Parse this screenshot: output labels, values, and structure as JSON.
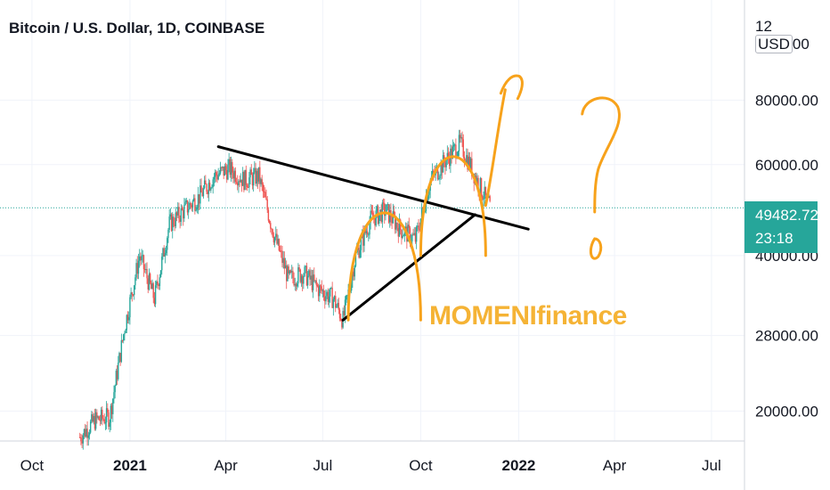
{
  "header": {
    "title": "Bitcoin / U.S. Dollar, 1D, COINBASE",
    "currency_prefix": "12",
    "currency": "USD",
    "currency_suffix": "00"
  },
  "watermark": "MOMENIfinance",
  "last_price": {
    "value": "49482.72",
    "countdown": "23:18"
  },
  "colors": {
    "up": "#26a69a",
    "down": "#ef5350",
    "drawing_orange": "#f7a21b",
    "trendline": "#000000",
    "grid": "#f0f3fa",
    "price_line": "#26a69a"
  },
  "chart_data": {
    "type": "candlestick",
    "title": "Bitcoin / U.S. Dollar, 1D, COINBASE",
    "scale": "log",
    "ylim": [
      17500,
      125000
    ],
    "xlim": [
      "2020-09-01",
      "2022-08-01"
    ],
    "y_ticks": [
      "20000.00",
      "28000.00",
      "40000.00",
      "60000.00",
      "80000.00"
    ],
    "x_ticks": [
      "Oct",
      "2021",
      "Apr",
      "Jul",
      "Oct",
      "2022",
      "Apr",
      "Jul"
    ],
    "x_tick_dates": [
      "2020-10-01",
      "2021-01-01",
      "2021-04-01",
      "2021-07-01",
      "2021-10-01",
      "2022-01-01",
      "2022-04-01",
      "2022-07-01"
    ],
    "last_price": 49482.72,
    "series": [
      {
        "date": [
          "2020-11-15",
          "2020-11-29",
          "2020-12-13",
          "2020-12-27",
          "2021-01-10",
          "2021-01-24",
          "2021-02-07",
          "2021-02-21",
          "2021-03-07",
          "2021-03-21",
          "2021-04-04",
          "2021-04-18",
          "2021-05-02",
          "2021-05-16",
          "2021-05-30",
          "2021-06-13",
          "2021-06-27",
          "2021-07-11",
          "2021-07-20",
          "2021-08-01",
          "2021-08-15",
          "2021-08-29",
          "2021-09-12",
          "2021-09-26",
          "2021-10-10",
          "2021-10-24",
          "2021-11-07",
          "2021-11-21",
          "2021-12-05"
        ],
        "price": [
          17800,
          19200,
          19500,
          29000,
          40000,
          33000,
          46000,
          49000,
          52000,
          57000,
          59000,
          56000,
          57000,
          44000,
          36000,
          37000,
          34500,
          33000,
          30000,
          40000,
          47000,
          49000,
          45000,
          43000,
          56000,
          61000,
          66000,
          57000,
          49500
        ]
      }
    ],
    "annotations": {
      "descending_trendline": [
        [
          "2021-03-25",
          65000
        ],
        [
          "2022-01-10",
          45000
        ]
      ],
      "ascending_trendline": [
        [
          "2021-07-20",
          30000
        ],
        [
          "2021-11-21",
          48000
        ]
      ],
      "rounded_tops": [
        [
          "2021-07-25",
          "2021-10-01"
        ],
        [
          "2021-10-01",
          "2021-12-01"
        ]
      ],
      "question_mark_date": "2022-03-15"
    }
  }
}
